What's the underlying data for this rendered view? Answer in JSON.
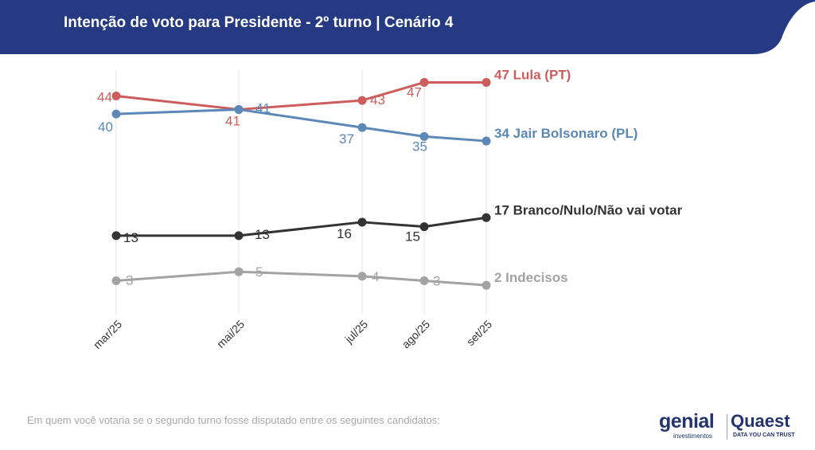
{
  "header": {
    "title": "Intenção de voto para Presidente - 2º turno | Cenário 4",
    "background_color": "#263a83"
  },
  "chart_data": {
    "type": "line",
    "categories": [
      "mar/25",
      "mai/25",
      "jul/25",
      "ago/25",
      "set/25"
    ],
    "grid": "vertical",
    "series": [
      {
        "name": "Lula (PT)",
        "values": [
          44,
          41,
          43,
          47,
          47
        ],
        "color": "#cd5c5c",
        "end_label": "47 Lula (PT)"
      },
      {
        "name": "Jair Bolsonaro (PL)",
        "values": [
          40,
          41,
          37,
          35,
          34
        ],
        "color": "#5b88b6",
        "end_label": "34 Jair Bolsonaro (PL)"
      },
      {
        "name": "Branco/Nulo/Não vai votar",
        "values": [
          13,
          13,
          16,
          15,
          17
        ],
        "color": "#333333",
        "end_label": "17 Branco/Nulo/Não vai votar"
      },
      {
        "name": "Indecisos",
        "values": [
          3,
          5,
          4,
          3,
          2
        ],
        "color": "#a3a3a3",
        "end_label": "2 Indecisos"
      }
    ]
  },
  "footer": {
    "note": "Em quem você votaria se o segundo turno fosse disputado entre os seguintes candidatos:",
    "logo_genial": "genial",
    "logo_genial_sub": "investimentos",
    "logo_quaest": "Quaest",
    "logo_quaest_sub": "DATA YOU CAN TRUST"
  }
}
